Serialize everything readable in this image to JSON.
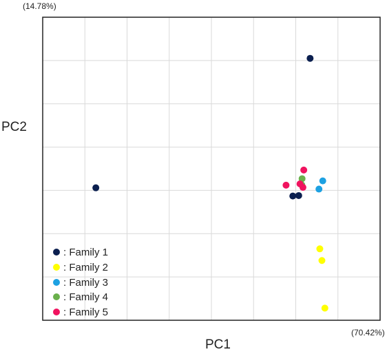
{
  "axis_pct": {
    "x": "(70.42%)",
    "y": "(14.78%)"
  },
  "chart_data": {
    "type": "scatter",
    "xlabel": "PC1",
    "ylabel": "PC2",
    "xlim": [
      0,
      8
    ],
    "ylim": [
      0,
      7
    ],
    "grid": true,
    "legend_position": "bottom-left",
    "series": [
      {
        "name": ": Family 1",
        "color": "#0b1f4f",
        "points": [
          [
            6.34,
            6.05
          ],
          [
            1.26,
            3.06
          ],
          [
            5.93,
            2.87
          ],
          [
            6.07,
            2.88
          ]
        ]
      },
      {
        "name": ": Family 2",
        "color": "#ffff00",
        "points": [
          [
            6.57,
            1.65
          ],
          [
            6.62,
            1.38
          ],
          [
            6.69,
            0.28
          ]
        ]
      },
      {
        "name": ": Family 3",
        "color": "#1da1e2",
        "points": [
          [
            6.64,
            3.22
          ],
          [
            6.55,
            3.03
          ]
        ]
      },
      {
        "name": ": Family 4",
        "color": "#6ab04c",
        "points": [
          [
            6.15,
            3.27
          ],
          [
            6.14,
            3.13
          ]
        ]
      },
      {
        "name": ": Family 5",
        "color": "#f0135f",
        "points": [
          [
            6.19,
            3.47
          ],
          [
            5.77,
            3.12
          ],
          [
            6.1,
            3.15
          ],
          [
            6.17,
            3.07
          ]
        ]
      }
    ]
  }
}
